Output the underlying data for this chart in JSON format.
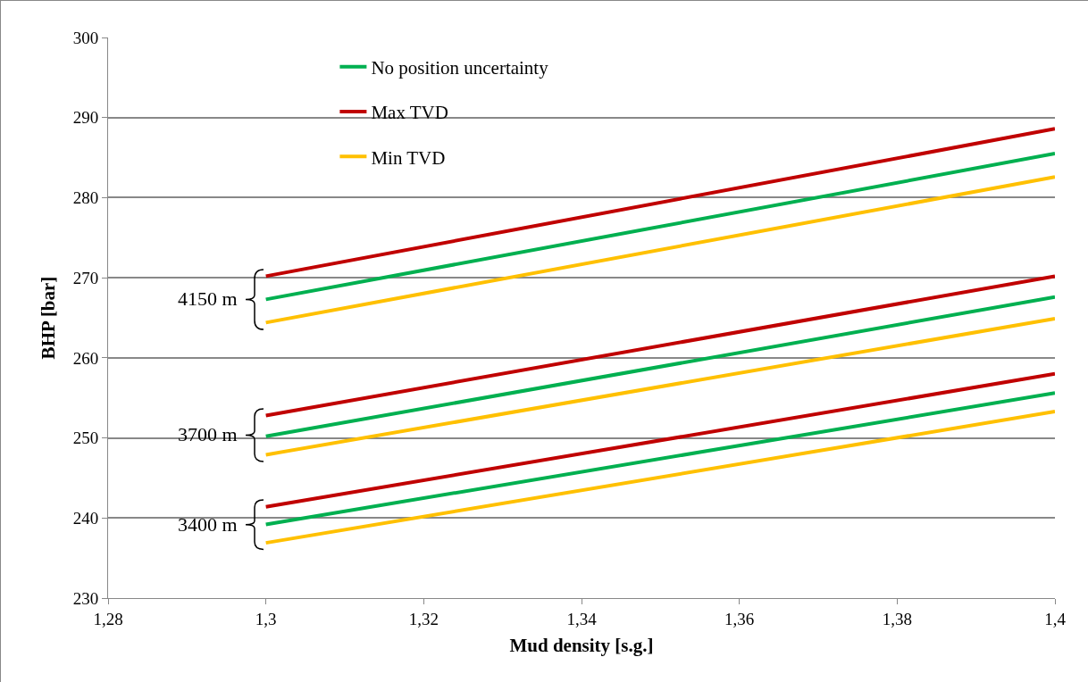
{
  "chart_data": {
    "type": "line",
    "xlabel": "Mud density [s.g.]",
    "ylabel": "BHP [bar]",
    "x": [
      1.3,
      1.4
    ],
    "series": [
      {
        "name": "No position uncertainty",
        "color": "#00b050",
        "values": [
          267.3,
          285.5
        ]
      },
      {
        "name": "Max TVD",
        "color": "#c00000",
        "values": [
          270.2,
          288.6
        ]
      },
      {
        "name": "Min TVD",
        "color": "#ffc000",
        "values": [
          264.4,
          282.6
        ]
      },
      {
        "color": "#c00000",
        "values": [
          252.8,
          270.2
        ]
      },
      {
        "color": "#00b050",
        "values": [
          250.2,
          267.6
        ]
      },
      {
        "color": "#ffc000",
        "values": [
          247.9,
          264.9
        ]
      },
      {
        "color": "#c00000",
        "values": [
          241.4,
          258.0
        ]
      },
      {
        "color": "#00b050",
        "values": [
          239.2,
          255.6
        ]
      },
      {
        "color": "#ffc000",
        "values": [
          236.9,
          253.3
        ]
      }
    ],
    "xlim": [
      1.28,
      1.4
    ],
    "xticks": [
      {
        "value": 1.28,
        "label": "1,28"
      },
      {
        "value": 1.3,
        "label": "1,3"
      },
      {
        "value": 1.32,
        "label": "1,32"
      },
      {
        "value": 1.34,
        "label": "1,34"
      },
      {
        "value": 1.36,
        "label": "1,36"
      },
      {
        "value": 1.38,
        "label": "1,38"
      },
      {
        "value": 1.4,
        "label": "1,4"
      }
    ],
    "ylim": [
      230,
      300
    ],
    "yticks": [
      230,
      240,
      250,
      260,
      270,
      280,
      290,
      300
    ],
    "grid": "y",
    "legend": "top left",
    "marker": "none",
    "line_style": "solid",
    "annotations": [
      "4150 m",
      "3700 m",
      "3400 m"
    ]
  }
}
